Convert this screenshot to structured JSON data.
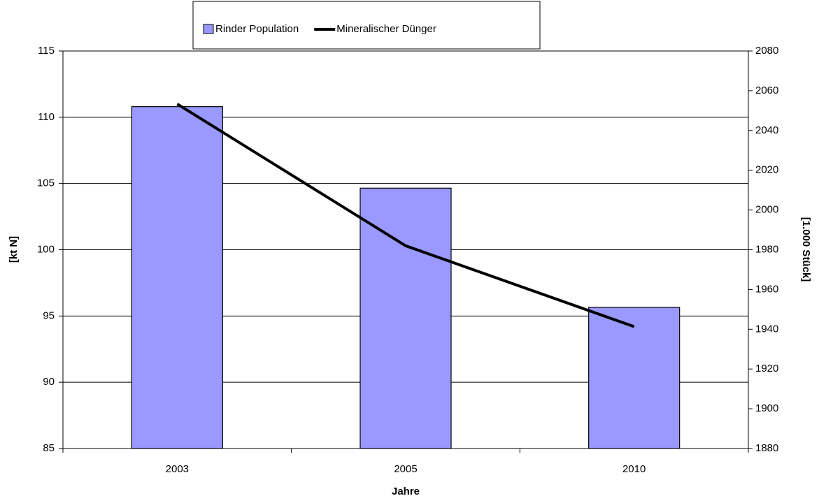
{
  "chart_data": {
    "type": "bar_line",
    "categories": [
      "2003",
      "2005",
      "2010"
    ],
    "series": [
      {
        "name": "Rinder Population",
        "type": "bar",
        "axis": "y2",
        "color": "#9999ff",
        "values": [
          2052,
          2011,
          1951
        ]
      },
      {
        "name": "Mineralischer Dünger",
        "type": "line",
        "axis": "y",
        "color": "#000000",
        "values": [
          111.0,
          100.3,
          94.2
        ]
      }
    ],
    "xlabel": "Jahre",
    "ylabel": "[kt N]",
    "y2label": "[1.000 Stück]",
    "ylim": [
      85,
      115
    ],
    "yticks": [
      85,
      90,
      95,
      100,
      105,
      110,
      115
    ],
    "y2lim": [
      1880,
      2080
    ],
    "y2ticks": [
      1880,
      1900,
      1920,
      1940,
      1960,
      1980,
      2000,
      2020,
      2040,
      2060,
      2080
    ],
    "grid": true,
    "legend": "top"
  }
}
